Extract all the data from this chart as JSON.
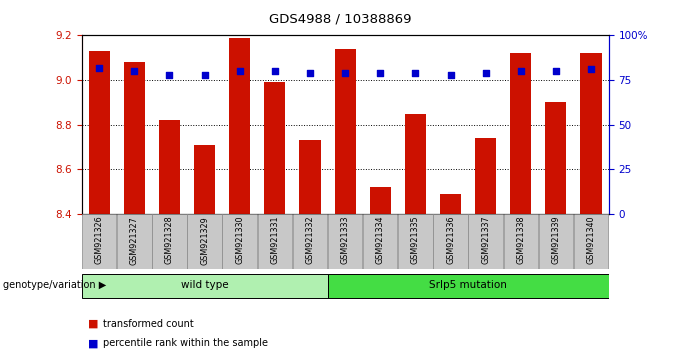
{
  "title": "GDS4988 / 10388869",
  "samples": [
    "GSM921326",
    "GSM921327",
    "GSM921328",
    "GSM921329",
    "GSM921330",
    "GSM921331",
    "GSM921332",
    "GSM921333",
    "GSM921334",
    "GSM921335",
    "GSM921336",
    "GSM921337",
    "GSM921338",
    "GSM921339",
    "GSM921340"
  ],
  "transformed_counts": [
    9.13,
    9.08,
    8.82,
    8.71,
    9.19,
    8.99,
    8.73,
    9.14,
    8.52,
    8.85,
    8.49,
    8.74,
    9.12,
    8.9,
    9.12
  ],
  "percentile_ranks": [
    82,
    80,
    78,
    78,
    80,
    80,
    79,
    79,
    79,
    79,
    78,
    79,
    80,
    80,
    81
  ],
  "bar_color": "#cc1100",
  "dot_color": "#0000cc",
  "ylim_left": [
    8.4,
    9.2
  ],
  "ylim_right": [
    0,
    100
  ],
  "yticks_left": [
    8.4,
    8.6,
    8.8,
    9.0,
    9.2
  ],
  "yticks_right": [
    0,
    25,
    50,
    75,
    100
  ],
  "ytick_labels_right": [
    "0",
    "25",
    "50",
    "75",
    "100%"
  ],
  "grid_values": [
    9.0,
    8.8,
    8.6
  ],
  "groups": [
    {
      "label": "wild type",
      "color": "#b0f0b0",
      "start": 0,
      "end": 7
    },
    {
      "label": "Srlp5 mutation",
      "color": "#44dd44",
      "start": 7,
      "end": 15
    }
  ],
  "genotype_label": "genotype/variation",
  "legend_items": [
    {
      "color": "#cc1100",
      "label": "transformed count"
    },
    {
      "color": "#0000cc",
      "label": "percentile rank within the sample"
    }
  ],
  "bar_width": 0.6,
  "left_axis_color": "#cc1100",
  "right_axis_color": "#0000cc"
}
